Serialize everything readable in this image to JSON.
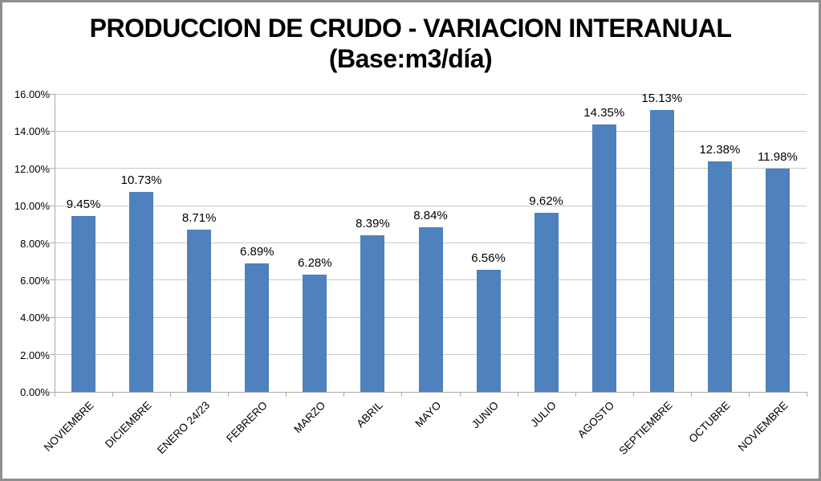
{
  "title": {
    "line1": "PRODUCCION DE CRUDO - VARIACION INTERANUAL",
    "line2": "(Base:m3/día)"
  },
  "chart_data": {
    "type": "bar",
    "title": "PRODUCCION DE CRUDO - VARIACION INTERANUAL (Base:m3/día)",
    "categories": [
      "NOVIEMBRE",
      "DICIEMBRE",
      "ENERO 24/23",
      "FEBRERO",
      "MARZO",
      "ABRIL",
      "MAYO",
      "JUNIO",
      "JULIO",
      "AGOSTO",
      "SEPTIEMBRE",
      "OCTUBRE",
      "NOVIEMBRE"
    ],
    "values": [
      9.45,
      10.73,
      8.71,
      6.89,
      6.28,
      8.39,
      8.84,
      6.56,
      9.62,
      14.35,
      15.13,
      12.38,
      11.98
    ],
    "data_labels": [
      "9.45%",
      "10.73%",
      "8.71%",
      "6.89%",
      "6.28%",
      "8.39%",
      "8.84%",
      "6.56%",
      "9.62%",
      "14.35%",
      "15.13%",
      "12.38%",
      "11.98%"
    ],
    "xlabel": "",
    "ylabel": "",
    "ylim": [
      0,
      16
    ],
    "ytick_step": 2,
    "ytick_labels": [
      "0.00%",
      "2.00%",
      "4.00%",
      "6.00%",
      "8.00%",
      "10.00%",
      "12.00%",
      "14.00%",
      "16.00%"
    ],
    "grid": true,
    "legend_position": "none",
    "bar_color": "#4E81BD",
    "gridline_color": "#C9C9C9",
    "axis_color": "#ABABAB",
    "text_color": "#000000",
    "frame_border_color": "#8f8f8f"
  }
}
